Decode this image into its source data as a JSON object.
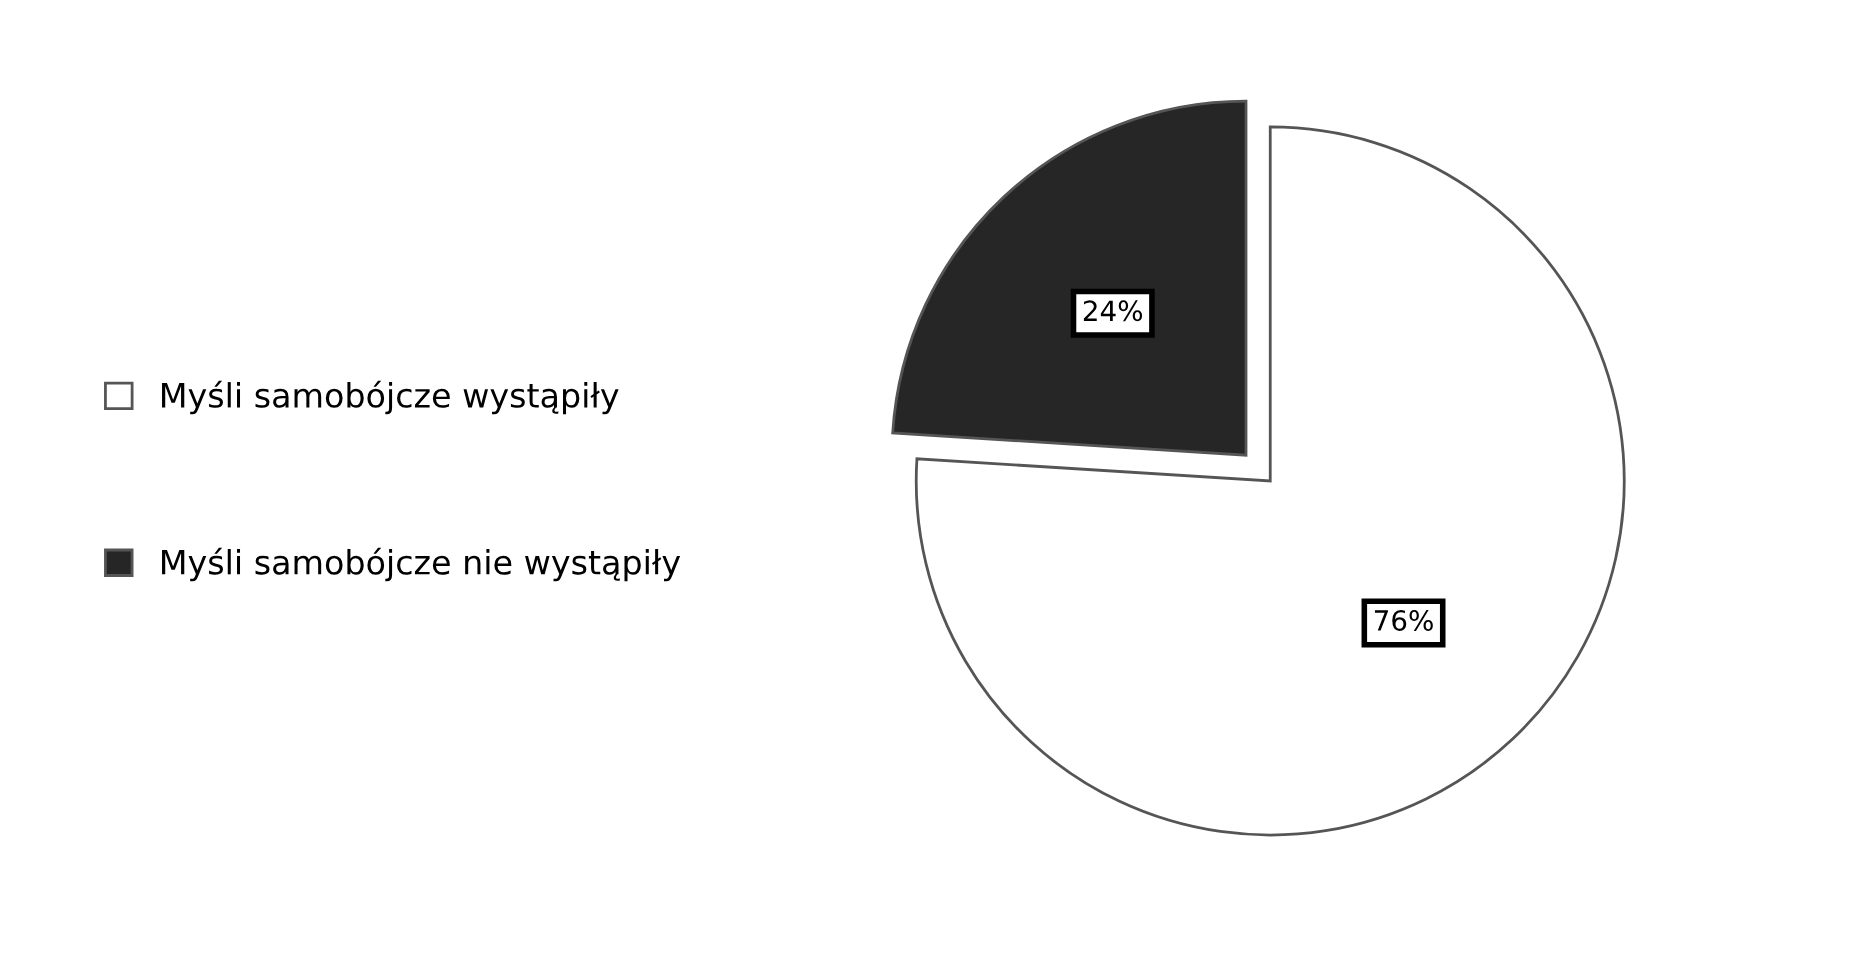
{
  "chart_data": {
    "type": "pie",
    "categories": [
      "Myśli samobójcze wystąpiły",
      "Myśli samobójcze nie wystąpiły"
    ],
    "values": [
      76,
      24
    ],
    "colors": [
      "#ffffff",
      "#262626"
    ],
    "value_labels": [
      "76%",
      "24%"
    ],
    "legend": "left"
  }
}
